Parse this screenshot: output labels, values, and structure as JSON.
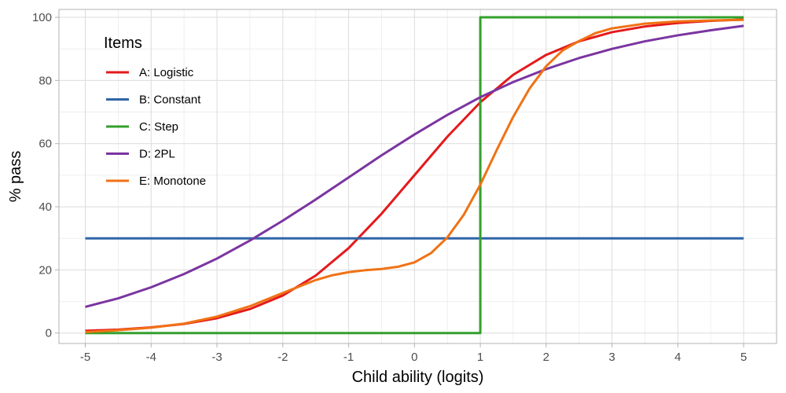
{
  "chart_data": {
    "type": "line",
    "xlabel": "Child ability (logits)",
    "ylabel": "% pass",
    "xlim": [
      -5.4,
      5.5
    ],
    "ylim": [
      -3.3,
      102.5
    ],
    "x_ticks": [
      -5,
      -4,
      -3,
      -2,
      -1,
      0,
      1,
      2,
      3,
      4,
      5
    ],
    "x_tick_labels": [
      "-5",
      "-4",
      "-3",
      "-2",
      "-1",
      "0",
      "1",
      "2",
      "3",
      "4",
      "5"
    ],
    "y_ticks": [
      0,
      20,
      40,
      60,
      80,
      100
    ],
    "y_tick_labels": [
      "0",
      "20",
      "40",
      "60",
      "80",
      "100"
    ],
    "grid": true,
    "legend": {
      "title": "Items",
      "position": "top-left-inside"
    },
    "series": [
      {
        "name": "A: Logistic",
        "color": "#e41a1c",
        "x": [
          -5,
          -4.5,
          -4,
          -3.5,
          -3,
          -2.5,
          -2,
          -1.5,
          -1,
          -0.5,
          0,
          0.5,
          1,
          1.5,
          2,
          2.5,
          3,
          3.5,
          4,
          4.5,
          5
        ],
        "y": [
          0.7,
          1.1,
          1.8,
          2.9,
          4.7,
          7.6,
          11.9,
          18.2,
          26.9,
          37.8,
          50,
          62.2,
          73.1,
          81.8,
          88.1,
          92.4,
          95.3,
          97.1,
          98.2,
          98.9,
          99.3
        ]
      },
      {
        "name": "B: Constant",
        "color": "#2f65a7",
        "x": [
          -5,
          5
        ],
        "y": [
          30,
          30
        ]
      },
      {
        "name": "C: Step",
        "color": "#33a02c",
        "x": [
          -5,
          1,
          1,
          5
        ],
        "y": [
          0,
          0,
          100,
          100
        ]
      },
      {
        "name": "D: 2PL",
        "color": "#7b35a0",
        "x": [
          -5,
          -4.5,
          -4,
          -3.5,
          -3,
          -2.5,
          -2,
          -1.5,
          -1,
          -0.5,
          0,
          0.5,
          1,
          1.5,
          2,
          2.5,
          3,
          3.5,
          4,
          4.5,
          5
        ],
        "y": [
          8.3,
          11.0,
          14.5,
          18.7,
          23.6,
          29.3,
          35.6,
          42.3,
          49.3,
          56.3,
          62.9,
          69.1,
          74.7,
          79.5,
          83.6,
          87.1,
          90.0,
          92.4,
          94.3,
          95.9,
          97.3
        ]
      },
      {
        "name": "E: Monotone",
        "color": "#f07214",
        "x": [
          -5,
          -4.5,
          -4,
          -3.5,
          -3,
          -2.5,
          -2,
          -1.5,
          -1.25,
          -1,
          -0.75,
          -0.5,
          -0.25,
          0,
          0.25,
          0.5,
          0.75,
          1,
          1.25,
          1.5,
          1.75,
          2,
          2.25,
          2.5,
          2.75,
          3,
          3.5,
          4,
          4.5,
          5
        ],
        "y": [
          0.3,
          0.9,
          1.7,
          3.0,
          5.2,
          8.5,
          12.7,
          16.8,
          18.3,
          19.3,
          19.9,
          20.3,
          21.0,
          22.4,
          25.3,
          30.3,
          37.5,
          47.0,
          58.0,
          68.5,
          77.5,
          84.5,
          89.5,
          92.5,
          95.0,
          96.5,
          98.0,
          98.7,
          99.0,
          99.2
        ]
      }
    ]
  }
}
